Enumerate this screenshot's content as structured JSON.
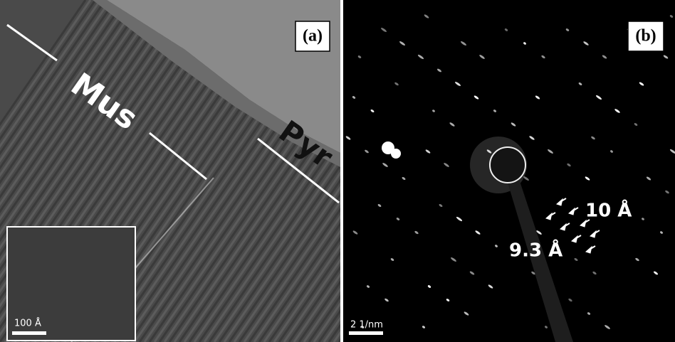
{
  "panels": [
    {
      "label": "(a)",
      "phases": [
        "Mus",
        "Pyr"
      ],
      "scale_bar": "100 Å"
    },
    {
      "label": "(b)",
      "annotations": [
        "10 Å",
        "9.3 Å"
      ],
      "scale_bar": "2 1/nm"
    }
  ]
}
